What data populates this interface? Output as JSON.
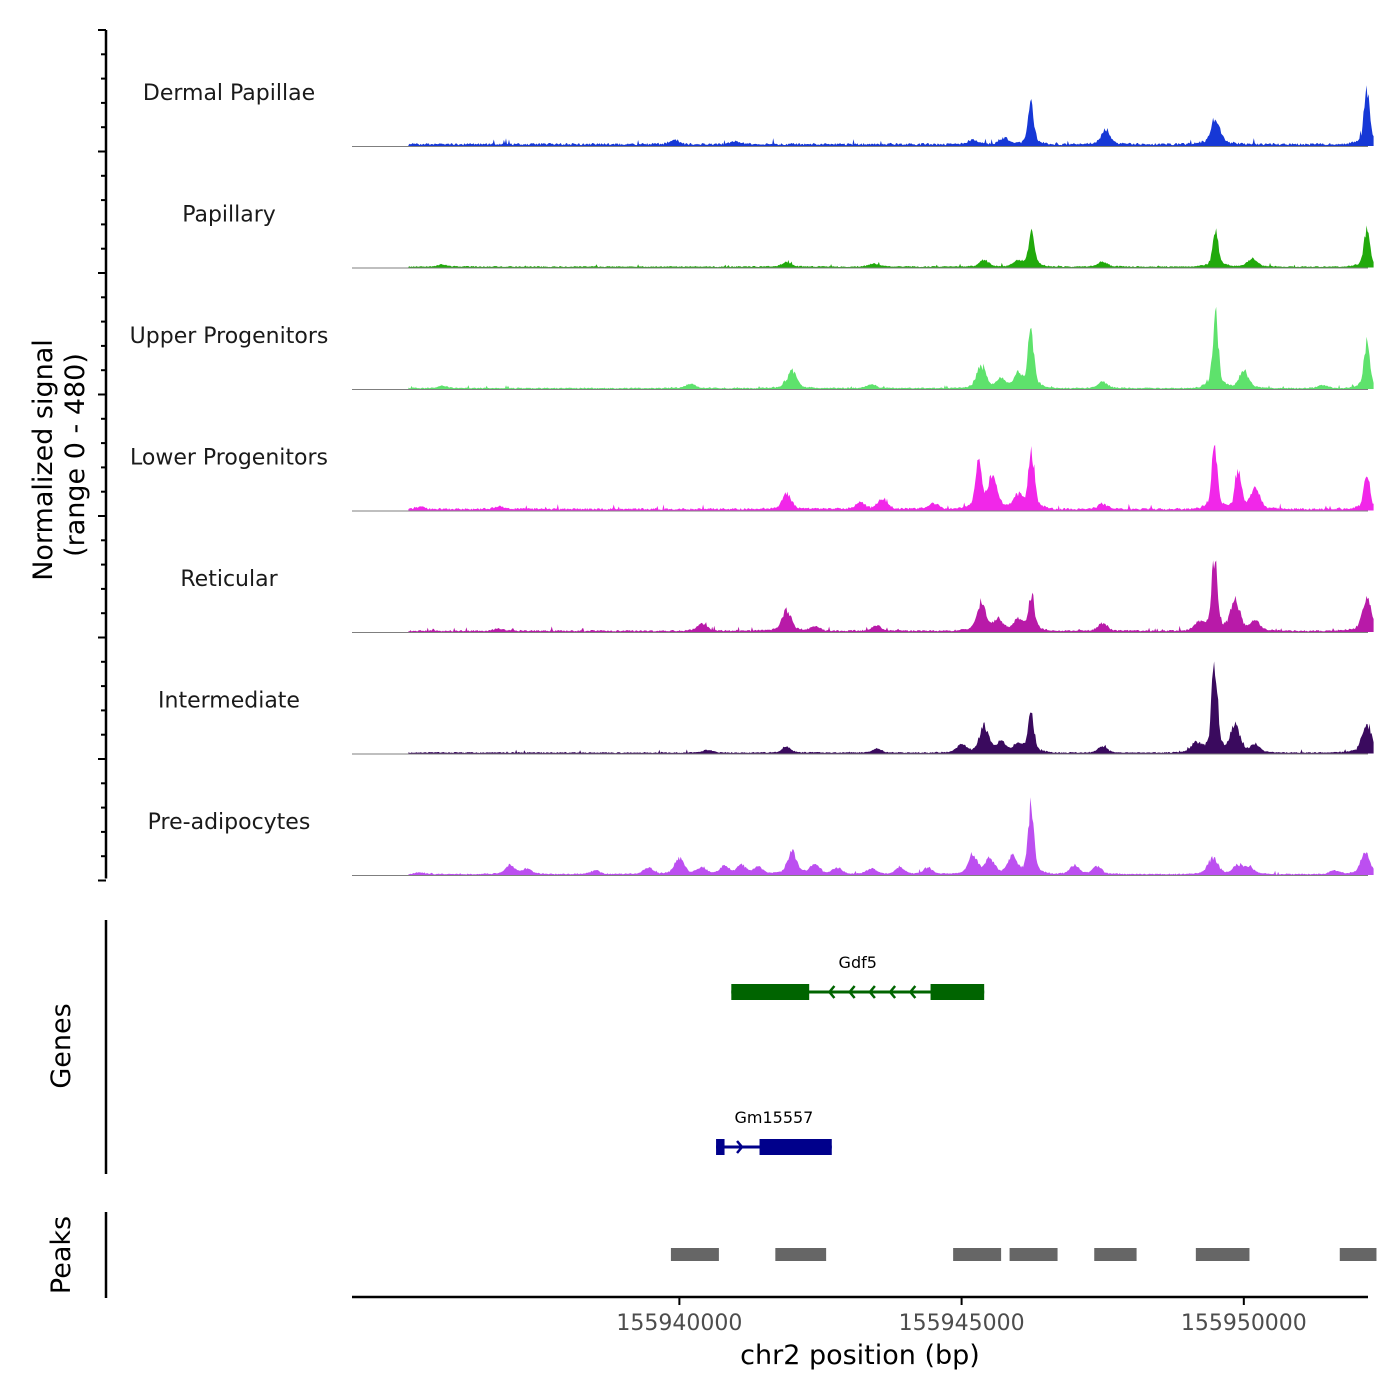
{
  "chart_data": {
    "type": "area",
    "title": "",
    "ylabel": "Normalized signal",
    "ylabel_range": "(range 0 - 480)",
    "xlabel": "chr2 position (bp)",
    "chromosome": "chr2",
    "xlim": [
      155934200,
      155952200
    ],
    "ylim": [
      0,
      480
    ],
    "x_ticks": [
      155940000,
      155945000,
      155950000
    ],
    "x_tick_labels": [
      "155940000",
      "155945000",
      "155950000"
    ],
    "tracks": [
      {
        "name": "Dermal Papillae",
        "color": "#1638d6",
        "bg": 12,
        "peaks": [
          [
            155939900,
            18
          ],
          [
            155941000,
            14
          ],
          [
            155945200,
            22
          ],
          [
            155945750,
            30
          ],
          [
            155946230,
            190
          ],
          [
            155947550,
            70
          ],
          [
            155949500,
            120
          ],
          [
            155952180,
            250
          ]
        ]
      },
      {
        "name": "Papillary",
        "color": "#21a90c",
        "bg": 6,
        "peaks": [
          [
            155935800,
            10
          ],
          [
            155941900,
            22
          ],
          [
            155943450,
            15
          ],
          [
            155945400,
            30
          ],
          [
            155946000,
            25
          ],
          [
            155946240,
            170
          ],
          [
            155947500,
            22
          ],
          [
            155949500,
            160
          ],
          [
            155950150,
            40
          ],
          [
            155952180,
            175
          ]
        ]
      },
      {
        "name": "Upper Progenitors",
        "color": "#5ee26c",
        "bg": 6,
        "peaks": [
          [
            155935800,
            10
          ],
          [
            155940200,
            20
          ],
          [
            155942000,
            80
          ],
          [
            155943400,
            18
          ],
          [
            155945350,
            100
          ],
          [
            155945700,
            40
          ],
          [
            155946000,
            60
          ],
          [
            155946230,
            270
          ],
          [
            155947500,
            30
          ],
          [
            155949500,
            330
          ],
          [
            155950000,
            80
          ],
          [
            155951400,
            15
          ],
          [
            155952180,
            210
          ]
        ]
      },
      {
        "name": "Lower Progenitors",
        "color": "#f127e9",
        "bg": 10,
        "peaks": [
          [
            155935400,
            10
          ],
          [
            155936800,
            12
          ],
          [
            155941900,
            70
          ],
          [
            155943200,
            30
          ],
          [
            155943600,
            50
          ],
          [
            155944500,
            30
          ],
          [
            155945300,
            240
          ],
          [
            155945550,
            150
          ],
          [
            155946000,
            60
          ],
          [
            155946240,
            270
          ],
          [
            155947500,
            25
          ],
          [
            155949480,
            280
          ],
          [
            155949900,
            190
          ],
          [
            155950200,
            100
          ],
          [
            155952180,
            170
          ]
        ]
      },
      {
        "name": "Reticular",
        "color": "#b81aa8",
        "bg": 8,
        "peaks": [
          [
            155936800,
            10
          ],
          [
            155940400,
            35
          ],
          [
            155941900,
            95
          ],
          [
            155942400,
            20
          ],
          [
            155943500,
            25
          ],
          [
            155945350,
            120
          ],
          [
            155945650,
            50
          ],
          [
            155946000,
            50
          ],
          [
            155946240,
            170
          ],
          [
            155947500,
            35
          ],
          [
            155949200,
            40
          ],
          [
            155949480,
            330
          ],
          [
            155949850,
            140
          ],
          [
            155950200,
            45
          ],
          [
            155952180,
            140
          ]
        ]
      },
      {
        "name": "Intermediate",
        "color": "#3a0a5e",
        "bg": 6,
        "peaks": [
          [
            155940500,
            12
          ],
          [
            155941900,
            25
          ],
          [
            155943500,
            18
          ],
          [
            155945000,
            40
          ],
          [
            155945400,
            120
          ],
          [
            155945700,
            45
          ],
          [
            155946000,
            40
          ],
          [
            155946230,
            190
          ],
          [
            155947500,
            30
          ],
          [
            155949150,
            45
          ],
          [
            155949480,
            430
          ],
          [
            155949850,
            130
          ],
          [
            155950200,
            35
          ],
          [
            155952180,
            140
          ]
        ]
      },
      {
        "name": "Pre-adipocytes",
        "color": "#bc4ff0",
        "bg": 6,
        "peaks": [
          [
            155935400,
            8
          ],
          [
            155937000,
            40
          ],
          [
            155937300,
            25
          ],
          [
            155938500,
            18
          ],
          [
            155939450,
            30
          ],
          [
            155940000,
            75
          ],
          [
            155940400,
            30
          ],
          [
            155940800,
            35
          ],
          [
            155941100,
            40
          ],
          [
            155941400,
            30
          ],
          [
            155942000,
            100
          ],
          [
            155942400,
            45
          ],
          [
            155942800,
            30
          ],
          [
            155943400,
            25
          ],
          [
            155943900,
            28
          ],
          [
            155944400,
            30
          ],
          [
            155945200,
            90
          ],
          [
            155945500,
            70
          ],
          [
            155945900,
            80
          ],
          [
            155946230,
            320
          ],
          [
            155947000,
            40
          ],
          [
            155947400,
            35
          ],
          [
            155949450,
            80
          ],
          [
            155949900,
            40
          ],
          [
            155950100,
            30
          ],
          [
            155951600,
            18
          ],
          [
            155952150,
            100
          ]
        ]
      }
    ],
    "genes": {
      "title": "Genes",
      "items": [
        {
          "name": "Gdf5",
          "color": "#006400",
          "strand": "-",
          "start": 155940920,
          "end": 155945400,
          "exons": [
            [
              155940920,
              155942300
            ],
            [
              155944450,
              155945400
            ]
          ]
        },
        {
          "name": "Gm15557",
          "color": "#00008b",
          "strand": "+",
          "start": 155940650,
          "end": 155942700,
          "exons": [
            [
              155940650,
              155940800
            ],
            [
              155941420,
              155942700
            ]
          ]
        }
      ]
    },
    "peaks_track": {
      "title": "Peaks",
      "color": "#666666",
      "regions": [
        [
          155939850,
          155940700
        ],
        [
          155941700,
          155942600
        ],
        [
          155944850,
          155945700
        ],
        [
          155945850,
          155946700
        ],
        [
          155947350,
          155948100
        ],
        [
          155949150,
          155950100
        ],
        [
          155951700,
          155952350
        ]
      ]
    }
  }
}
